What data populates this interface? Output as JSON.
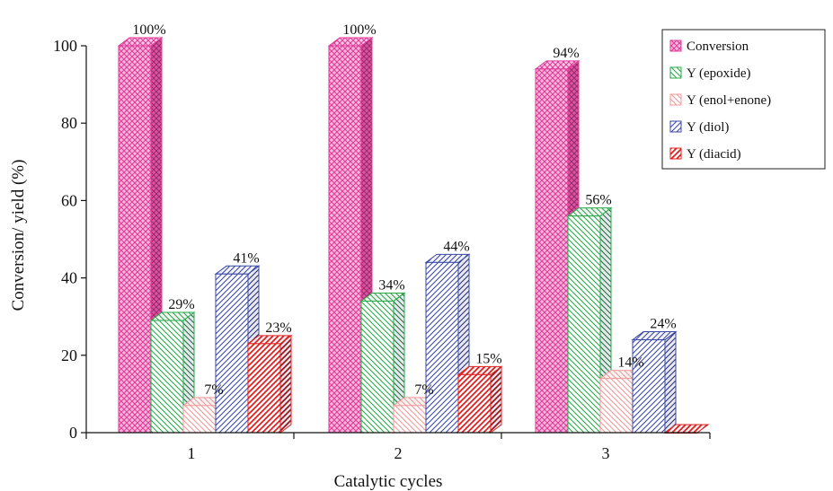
{
  "chart_data": {
    "type": "bar",
    "xlabel": "Catalytic cycles",
    "ylabel": "Conversion/ yield (%)",
    "ylim": [
      0,
      100
    ],
    "yticks": [
      0,
      20,
      40,
      60,
      80,
      100
    ],
    "categories": [
      "1",
      "2",
      "3"
    ],
    "legend_position": "top-right",
    "grid": false,
    "series": [
      {
        "name": "Conversion",
        "color": "#e0399a",
        "pattern": "crosshatch",
        "values": [
          100,
          100,
          94
        ],
        "labels": [
          "100%",
          "100%",
          "94%"
        ]
      },
      {
        "name": "Y (epoxide)",
        "color": "#2aa84a",
        "pattern": "diagonal-down",
        "values": [
          29,
          34,
          56
        ],
        "labels": [
          "29%",
          "34%",
          "56%"
        ]
      },
      {
        "name": "Y (enol+enone)",
        "color": "#f29a9a",
        "pattern": "diagonal-down-light",
        "values": [
          7,
          7,
          14
        ],
        "labels": [
          "7%",
          "7%",
          "14%"
        ]
      },
      {
        "name": "Y (diol)",
        "color": "#3b4aa8",
        "pattern": "diagonal-up",
        "values": [
          41,
          44,
          24
        ],
        "labels": [
          "41%",
          "44%",
          "24%"
        ]
      },
      {
        "name": "Y (diacid)",
        "color": "#e02020",
        "pattern": "diagonal-up-bold",
        "values": [
          23,
          15,
          0
        ],
        "labels": [
          "23%",
          "15%",
          ""
        ]
      }
    ]
  }
}
